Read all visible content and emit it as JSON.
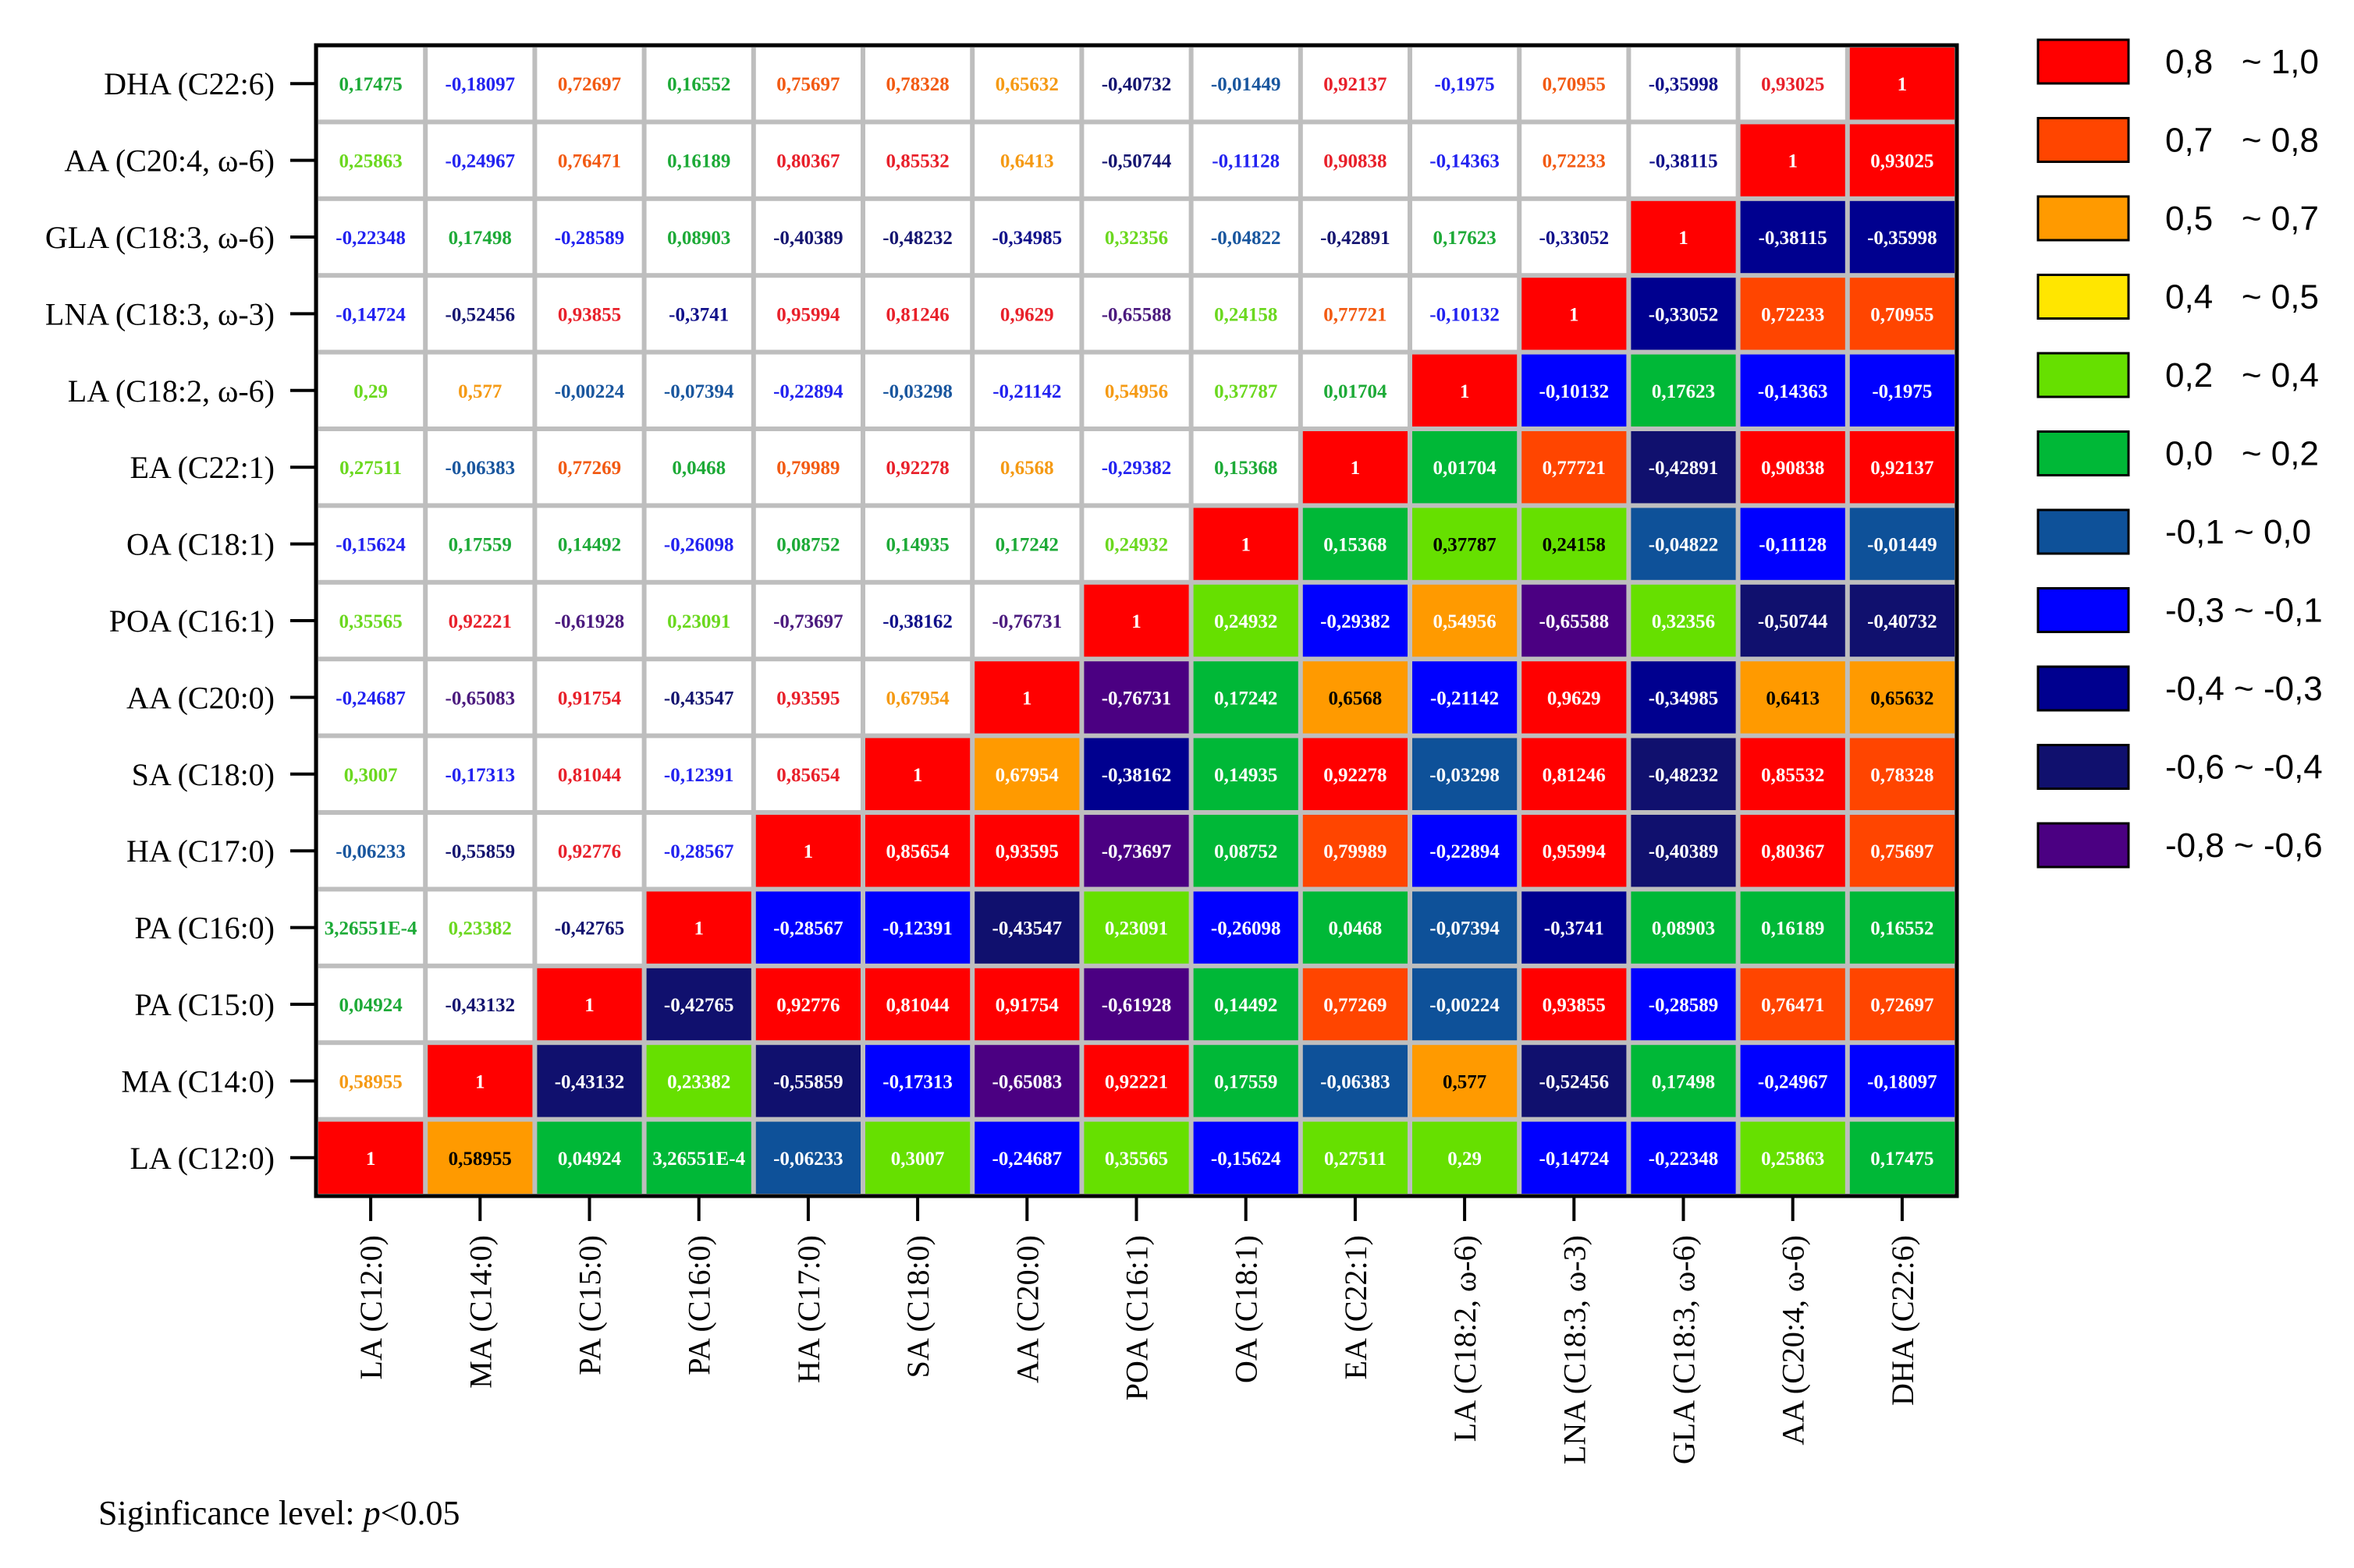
{
  "chart_data": {
    "type": "heatmap",
    "labels": [
      "LA (C12:0)",
      "MA (C14:0)",
      "PA (C15:0)",
      "PA (C16:0)",
      "HA (C17:0)",
      "SA (C18:0)",
      "AA (C20:0)",
      "POA (C16:1)",
      "OA (C18:1)",
      "EA (C22:1)",
      "LA (C18:2, ω-6)",
      "LNA (C18:3, ω-3)",
      "GLA (C18:3, ω-6)",
      "AA (C20:4, ω-6)",
      "DHA (C22:6)"
    ],
    "matrix_text": [
      [
        "1",
        "0,58955",
        "0,04924",
        "3,26551E-4",
        "-0,06233",
        "0,3007",
        "-0,24687",
        "0,35565",
        "-0,15624",
        "0,27511",
        "0,29",
        "-0,14724",
        "-0,22348",
        "0,25863",
        "0,17475"
      ],
      [
        "0,58955",
        "1",
        "-0,43132",
        "0,23382",
        "-0,55859",
        "-0,17313",
        "-0,65083",
        "0,92221",
        "0,17559",
        "-0,06383",
        "0,577",
        "-0,52456",
        "0,17498",
        "-0,24967",
        "-0,18097"
      ],
      [
        "0,04924",
        "-0,43132",
        "1",
        "-0,42765",
        "0,92776",
        "0,81044",
        "0,91754",
        "-0,61928",
        "0,14492",
        "0,77269",
        "-0,00224",
        "0,93855",
        "-0,28589",
        "0,76471",
        "0,72697"
      ],
      [
        "3,26551E-4",
        "0,23382",
        "-0,42765",
        "1",
        "-0,28567",
        "-0,12391",
        "-0,43547",
        "0,23091",
        "-0,26098",
        "0,0468",
        "-0,07394",
        "-0,3741",
        "0,08903",
        "0,16189",
        "0,16552"
      ],
      [
        "-0,06233",
        "-0,55859",
        "0,92776",
        "-0,28567",
        "1",
        "0,85654",
        "0,93595",
        "-0,73697",
        "0,08752",
        "0,79989",
        "-0,22894",
        "0,95994",
        "-0,40389",
        "0,80367",
        "0,75697"
      ],
      [
        "0,3007",
        "-0,17313",
        "0,81044",
        "-0,12391",
        "0,85654",
        "1",
        "0,67954",
        "-0,38162",
        "0,14935",
        "0,92278",
        "-0,03298",
        "0,81246",
        "-0,48232",
        "0,85532",
        "0,78328"
      ],
      [
        "-0,24687",
        "-0,65083",
        "0,91754",
        "-0,43547",
        "0,93595",
        "0,67954",
        "1",
        "-0,76731",
        "0,17242",
        "0,6568",
        "-0,21142",
        "0,9629",
        "-0,34985",
        "0,6413",
        "0,65632"
      ],
      [
        "0,35565",
        "0,92221",
        "-0,61928",
        "0,23091",
        "-0,73697",
        "-0,38162",
        "-0,76731",
        "1",
        "0,24932",
        "-0,29382",
        "0,54956",
        "-0,65588",
        "0,32356",
        "-0,50744",
        "-0,40732"
      ],
      [
        "-0,15624",
        "0,17559",
        "0,14492",
        "-0,26098",
        "0,08752",
        "0,14935",
        "0,17242",
        "0,24932",
        "1",
        "0,15368",
        "0,37787",
        "0,24158",
        "-0,04822",
        "-0,11128",
        "-0,01449"
      ],
      [
        "0,27511",
        "-0,06383",
        "0,77269",
        "0,0468",
        "0,79989",
        "0,92278",
        "0,6568",
        "-0,29382",
        "0,15368",
        "1",
        "0,01704",
        "0,77721",
        "-0,42891",
        "0,90838",
        "0,92137"
      ],
      [
        "0,29",
        "0,577",
        "-0,00224",
        "-0,07394",
        "-0,22894",
        "-0,03298",
        "-0,21142",
        "0,54956",
        "0,37787",
        "0,01704",
        "1",
        "-0,10132",
        "0,17623",
        "-0,14363",
        "-0,1975"
      ],
      [
        "-0,14724",
        "-0,52456",
        "0,93855",
        "-0,3741",
        "0,95994",
        "0,81246",
        "0,9629",
        "-0,65588",
        "0,24158",
        "0,77721",
        "-0,10132",
        "1",
        "-0,33052",
        "0,72233",
        "0,70955"
      ],
      [
        "-0,22348",
        "0,17498",
        "-0,28589",
        "0,08903",
        "-0,40389",
        "-0,48232",
        "-0,34985",
        "0,32356",
        "-0,04822",
        "-0,42891",
        "0,17623",
        "-0,33052",
        "1",
        "-0,38115",
        "-0,35998"
      ],
      [
        "0,25863",
        "-0,24967",
        "0,76471",
        "0,16189",
        "0,80367",
        "0,85532",
        "0,6413",
        "-0,50744",
        "-0,11128",
        "0,90838",
        "-0,14363",
        "0,72233",
        "-0,38115",
        "1",
        "0,93025"
      ],
      [
        "0,17475",
        "-0,18097",
        "0,72697",
        "0,16552",
        "0,75697",
        "0,78328",
        "0,65632",
        "-0,40732",
        "-0,01449",
        "0,92137",
        "-0,1975",
        "0,70955",
        "-0,35998",
        "0,93025",
        "1"
      ]
    ],
    "legend": [
      {
        "label": "0,8   ~ 1,0",
        "min": 0.8,
        "max": 1.0,
        "color": "#FF0000",
        "text_color": "#E8202A"
      },
      {
        "label": "0,7   ~ 0,8",
        "min": 0.7,
        "max": 0.8,
        "color": "#FF4500",
        "text_color": "#F25A12"
      },
      {
        "label": "0,5   ~ 0,7",
        "min": 0.5,
        "max": 0.7,
        "color": "#FF9A00",
        "text_color": "#F59A14"
      },
      {
        "label": "0,4   ~ 0,5",
        "min": 0.4,
        "max": 0.5,
        "color": "#FFE600",
        "text_color": "#E8D21A"
      },
      {
        "label": "0,2   ~ 0,4",
        "min": 0.2,
        "max": 0.4,
        "color": "#66E000",
        "text_color": "#6BD81F"
      },
      {
        "label": "0,0   ~ 0,2",
        "min": 0.0,
        "max": 0.2,
        "color": "#00B837",
        "text_color": "#1DAA37"
      },
      {
        "label": "-0,1 ~ 0,0",
        "min": -0.1,
        "max": 0.0,
        "color": "#0E5199",
        "text_color": "#19569E"
      },
      {
        "label": "-0,3 ~ -0,1",
        "min": -0.3,
        "max": -0.1,
        "color": "#0000FF",
        "text_color": "#2222F0"
      },
      {
        "label": "-0,4 ~ -0,3",
        "min": -0.4,
        "max": -0.3,
        "color": "#00008F",
        "text_color": "#10108A"
      },
      {
        "label": "-0,6 ~ -0,4",
        "min": -0.6,
        "max": -0.4,
        "color": "#10106E",
        "text_color": "#141470"
      },
      {
        "label": "-0,8 ~ -0,6",
        "min": -0.8,
        "max": -0.6,
        "color": "#4B0082",
        "text_color": "#4B1A7E"
      }
    ],
    "lower_triangle_text_color": "#FFFFFF",
    "upper_triangle_background": "#FFFFFF",
    "grid_color": "#BEBEBE",
    "alt_dark_text_color": "#000000",
    "alt_dark_text_cells": [
      "0,58955",
      "0,577",
      "0,6568",
      "0,6413",
      "0,65632",
      "0,37787",
      "0,24158"
    ]
  },
  "footnote": {
    "prefix": "Siginficance level: ",
    "p": "p",
    "suffix": "<0.05"
  }
}
